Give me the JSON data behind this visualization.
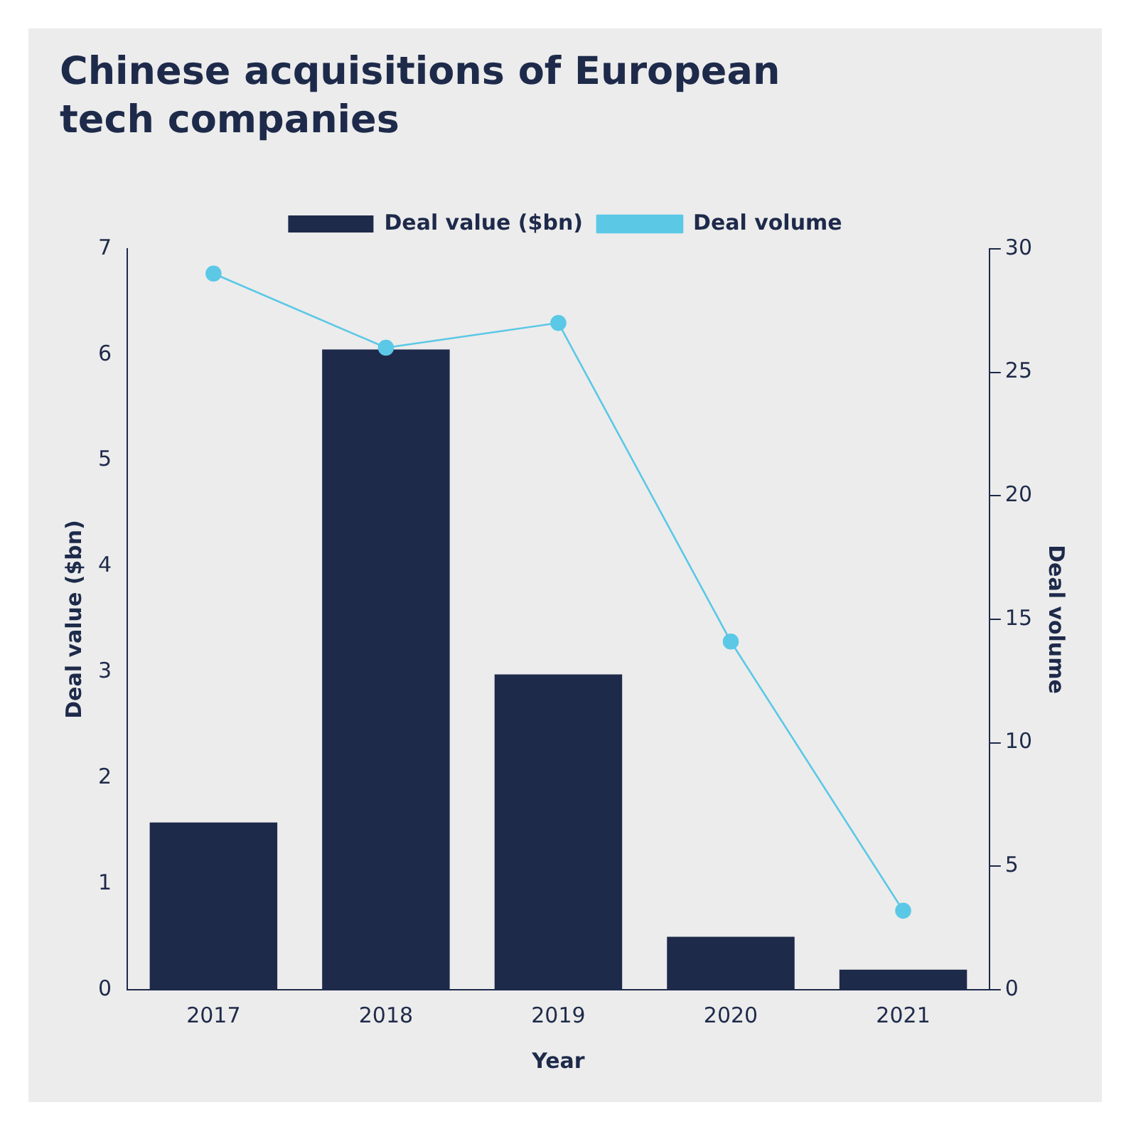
{
  "chart_data": {
    "type": "bar",
    "title": "Chinese acquisitions of European tech companies",
    "categories": [
      "2017",
      "2018",
      "2019",
      "2020",
      "2021"
    ],
    "series": [
      {
        "name": "Deal value ($bn)",
        "color": "#1e2a4a",
        "values": [
          1.58,
          6.05,
          2.98,
          0.5,
          0.19
        ]
      },
      {
        "name": "Deal volume",
        "type": "line",
        "axis": "y2",
        "color": "#5bc8e6",
        "values": [
          29,
          26,
          27,
          14.1,
          3.2
        ]
      }
    ],
    "xlabel": "Year",
    "ylabel": "Deal value ($bn)",
    "y2label": "Deal volume",
    "ylim": [
      0,
      7
    ],
    "yticks": [
      0,
      1,
      2,
      3,
      4,
      5,
      6,
      7
    ],
    "y2lim": [
      0,
      30
    ],
    "y2ticks": [
      0,
      5,
      10,
      15,
      20,
      25,
      30
    ],
    "grid": false,
    "legend": "top",
    "marker": "circle",
    "line_style": "solid"
  }
}
